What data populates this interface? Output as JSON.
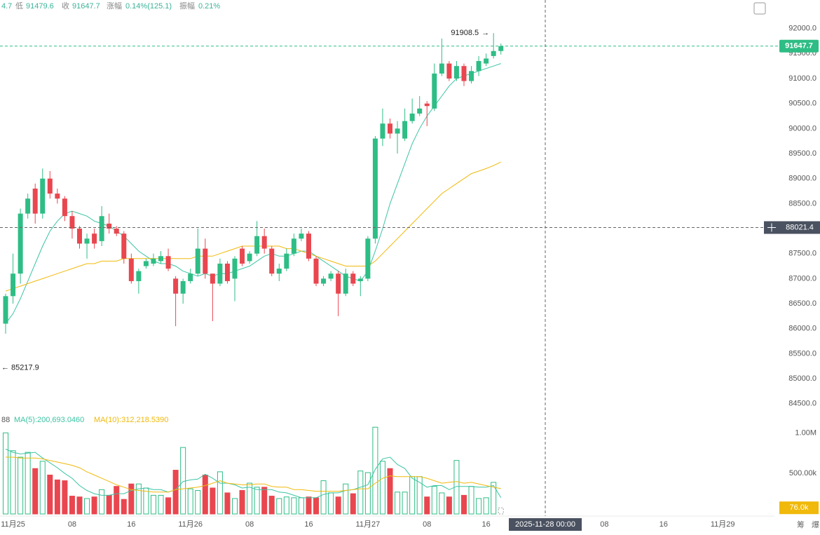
{
  "chart_data": {
    "type": "candlestick",
    "info": {
      "fragment": "4.7",
      "low_label": "低",
      "close_label": "收",
      "change_label": "涨幅",
      "change": "0.14%(125.1)",
      "amplitude_label": "振幅",
      "amplitude": "0.21%"
    },
    "xlim": [
      -0.76,
      104
    ],
    "xticks": [
      {
        "value": 1,
        "label": "11月25"
      },
      {
        "value": 9,
        "label": "08"
      },
      {
        "value": 17,
        "label": "16"
      },
      {
        "value": 25,
        "label": "11月26"
      },
      {
        "value": 33,
        "label": "08"
      },
      {
        "value": 41,
        "label": "16"
      },
      {
        "value": 49,
        "label": "11月27"
      },
      {
        "value": 57,
        "label": "08"
      },
      {
        "value": 65,
        "label": "16"
      },
      {
        "value": 81,
        "label": "08"
      },
      {
        "value": 89,
        "label": "16"
      },
      {
        "value": 97,
        "label": "11月29"
      }
    ],
    "ylim": [
      84300,
      92570
    ],
    "yticks": [
      {
        "value": 84500,
        "label": "84500.0"
      },
      {
        "value": 85000,
        "label": "85000.0"
      },
      {
        "value": 85500,
        "label": "85500.0"
      },
      {
        "value": 86000,
        "label": "86000.0"
      },
      {
        "value": 86500,
        "label": "86500.0"
      },
      {
        "value": 87000,
        "label": "87000.0"
      },
      {
        "value": 87500,
        "label": "87500.0"
      },
      {
        "value": 88000,
        "label": "88000.0"
      },
      {
        "value": 88500,
        "label": "88500.0"
      },
      {
        "value": 89000,
        "label": "89000.0"
      },
      {
        "value": 89500,
        "label": "89500.0"
      },
      {
        "value": 90000,
        "label": "90000.0"
      },
      {
        "value": 90500,
        "label": "90500.0"
      },
      {
        "value": 91000,
        "label": "91000.0"
      },
      {
        "value": 91500,
        "label": "91500.0"
      },
      {
        "value": 92000,
        "label": "92000.0"
      }
    ],
    "up_color": "#2ebd85",
    "down_color": "#e9464f",
    "candles": {
      "open": [
        86100,
        86650,
        87100,
        88300,
        88800,
        88300,
        89000,
        88700,
        88600,
        88250,
        88000,
        87700,
        87900,
        87750,
        88100,
        88000,
        87900,
        87400,
        86950,
        87250,
        87300,
        87350,
        87450,
        87000,
        86700,
        86950,
        87100,
        87600,
        87100,
        86900,
        87300,
        87000,
        87600,
        87350,
        87500,
        87850,
        87600,
        87100,
        87200,
        87500,
        87800,
        87900,
        87400,
        86900,
        87000,
        87100,
        86700,
        87100,
        86950,
        87000,
        87800,
        89800,
        90100,
        89900,
        89800,
        90150,
        90300,
        90500,
        90400,
        91100,
        91300,
        91000,
        91250,
        90950,
        91150,
        91300,
        91450,
        91550
      ],
      "high": [
        86700,
        87500,
        88400,
        88700,
        88900,
        89200,
        89150,
        88800,
        88650,
        88350,
        88050,
        87900,
        88000,
        88450,
        88300,
        88050,
        87950,
        87500,
        87200,
        87400,
        87500,
        87550,
        87600,
        87050,
        87000,
        87200,
        88000,
        87800,
        86950,
        87400,
        87350,
        87450,
        87650,
        87550,
        88150,
        88000,
        87650,
        87300,
        87600,
        87900,
        88000,
        87950,
        87450,
        87050,
        87150,
        87150,
        87200,
        87150,
        87050,
        87850,
        89850,
        90400,
        90200,
        90150,
        90400,
        90600,
        90650,
        90550,
        91300,
        91800,
        91350,
        91350,
        91300,
        91250,
        91450,
        91500,
        91908.5,
        91700
      ],
      "low": [
        85900,
        86500,
        86900,
        88200,
        88100,
        88200,
        88600,
        88500,
        88150,
        87800,
        87600,
        87400,
        87600,
        87650,
        87900,
        87850,
        87300,
        86900,
        86700,
        87200,
        87250,
        87300,
        87150,
        86050,
        86500,
        86900,
        87050,
        87000,
        86150,
        86850,
        86900,
        86550,
        87250,
        87300,
        87450,
        87500,
        87050,
        86950,
        87150,
        87450,
        87750,
        87350,
        86850,
        86850,
        86950,
        86250,
        86650,
        86850,
        86650,
        86950,
        87700,
        89650,
        89800,
        89500,
        89750,
        90100,
        90250,
        90050,
        90350,
        91050,
        90950,
        90950,
        90850,
        90900,
        91050,
        91250,
        91400,
        91479.6
      ],
      "close": [
        86650,
        87100,
        88300,
        88600,
        88300,
        89000,
        88700,
        88600,
        88250,
        88000,
        87700,
        87800,
        87700,
        88250,
        88000,
        87900,
        87400,
        86950,
        87150,
        87350,
        87400,
        87450,
        87200,
        86700,
        86950,
        87100,
        87600,
        87100,
        86900,
        87300,
        86950,
        87400,
        87300,
        87500,
        87850,
        87600,
        87100,
        87200,
        87500,
        87800,
        87900,
        87400,
        86900,
        87000,
        87100,
        86700,
        87100,
        86900,
        87000,
        87800,
        89800,
        90100,
        89900,
        90000,
        90150,
        90300,
        90400,
        90450,
        91100,
        91300,
        91000,
        91250,
        90950,
        91150,
        91350,
        91400,
        91550,
        91647.7
      ]
    },
    "ma": [
      {
        "color": "#3cc4a4",
        "values": [
          86100,
          86300,
          86600,
          86950,
          87300,
          87650,
          87950,
          88150,
          88300,
          88350,
          88300,
          88250,
          88150,
          88100,
          88050,
          87950,
          87850,
          87700,
          87550,
          87450,
          87350,
          87300,
          87300,
          87250,
          87150,
          87100,
          87050,
          87100,
          87050,
          87100,
          87100,
          87150,
          87200,
          87250,
          87350,
          87450,
          87500,
          87450,
          87450,
          87500,
          87550,
          87550,
          87450,
          87350,
          87250,
          87150,
          87050,
          87000,
          86950,
          87150,
          87550,
          88000,
          88500,
          88900,
          89300,
          89700,
          90000,
          90250,
          90450,
          90650,
          90850,
          91000,
          91050,
          91100,
          91150,
          91200,
          91250,
          91300
        ]
      },
      {
        "color": "#f0b90b",
        "values": [
          86750,
          86800,
          86850,
          86900,
          86950,
          87000,
          87050,
          87100,
          87150,
          87200,
          87250,
          87300,
          87300,
          87350,
          87350,
          87350,
          87400,
          87400,
          87400,
          87400,
          87400,
          87400,
          87400,
          87400,
          87400,
          87400,
          87450,
          87450,
          87450,
          87500,
          87550,
          87600,
          87650,
          87650,
          87650,
          87650,
          87650,
          87650,
          87600,
          87600,
          87550,
          87500,
          87450,
          87400,
          87350,
          87300,
          87250,
          87250,
          87250,
          87250,
          87350,
          87500,
          87650,
          87800,
          87950,
          88100,
          88250,
          88400,
          88550,
          88700,
          88800,
          88900,
          89000,
          89100,
          89150,
          89200,
          89260,
          89330
        ]
      }
    ],
    "max_marker": "→",
    "min_marker": {
      "value": 85217.9,
      "arrow": "←"
    },
    "crosshair": {
      "price": 88021.4,
      "x": 73,
      "time_label": "2025-11-28 00:00"
    },
    "volume": {
      "legend_fragment": "88",
      "ma5_label": "MA(5):200,693.0460",
      "ma10_label": "MA(10):312,218.5390",
      "ylim": [
        0,
        1150000
      ],
      "yticks": [
        {
          "value": 500000,
          "label": "500.00k"
        },
        {
          "value": 1000000,
          "label": "1.00M"
        }
      ],
      "values": [
        1000000,
        780000,
        700000,
        760000,
        560000,
        650000,
        480000,
        420000,
        410000,
        220000,
        210000,
        190000,
        210000,
        300000,
        230000,
        340000,
        180000,
        370000,
        370000,
        320000,
        230000,
        230000,
        200000,
        540000,
        820000,
        310000,
        290000,
        480000,
        320000,
        520000,
        260000,
        190000,
        290000,
        380000,
        330000,
        330000,
        220000,
        190000,
        210000,
        200000,
        200000,
        210000,
        200000,
        410000,
        260000,
        210000,
        370000,
        250000,
        530000,
        510000,
        1070000,
        650000,
        560000,
        270000,
        270000,
        460000,
        460000,
        210000,
        340000,
        260000,
        210000,
        660000,
        230000,
        340000,
        190000,
        200000,
        390000,
        76000
      ],
      "last_label": "76.0k",
      "ma5": [
        800000,
        760000,
        740000,
        750000,
        760000,
        690000,
        630000,
        570000,
        500000,
        440000,
        350000,
        290000,
        250000,
        230000,
        230000,
        250000,
        250000,
        290000,
        310000,
        320000,
        300000,
        300000,
        270000,
        300000,
        400000,
        420000,
        430000,
        490000,
        440000,
        380000,
        380000,
        360000,
        320000,
        330000,
        300000,
        300000,
        300000,
        270000,
        260000,
        230000,
        200000,
        200000,
        200000,
        240000,
        260000,
        260000,
        290000,
        300000,
        330000,
        360000,
        550000,
        680000,
        700000,
        610000,
        560000,
        440000,
        390000,
        330000,
        350000,
        350000,
        300000,
        340000,
        340000,
        340000,
        330000,
        330000,
        350000,
        200693.046
      ],
      "ma10": [
        700000,
        700000,
        690000,
        690000,
        690000,
        680000,
        660000,
        640000,
        620000,
        600000,
        570000,
        520000,
        480000,
        440000,
        400000,
        360000,
        330000,
        300000,
        290000,
        280000,
        270000,
        270000,
        270000,
        300000,
        310000,
        320000,
        330000,
        350000,
        380000,
        410000,
        380000,
        370000,
        360000,
        360000,
        370000,
        370000,
        340000,
        330000,
        330000,
        300000,
        300000,
        290000,
        280000,
        280000,
        280000,
        280000,
        290000,
        300000,
        310000,
        310000,
        380000,
        440000,
        470000,
        460000,
        460000,
        460000,
        460000,
        440000,
        410000,
        380000,
        390000,
        400000,
        380000,
        390000,
        370000,
        350000,
        330000,
        312218.539
      ]
    },
    "tools": [
      "筹",
      "爆"
    ]
  }
}
